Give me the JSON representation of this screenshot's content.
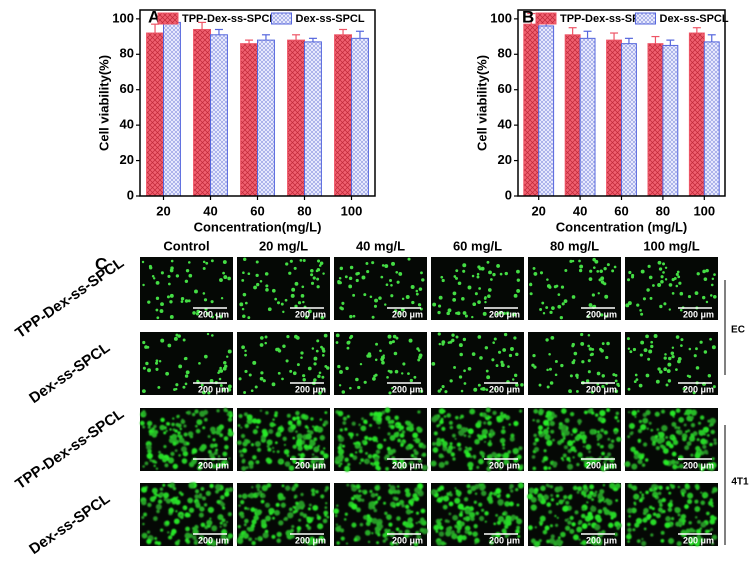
{
  "chart_data": [
    {
      "type": "bar",
      "panel": "A",
      "ylabel": "Cell viability(%)",
      "xlabel": "Concentration(mg/L)",
      "categories": [
        "20",
        "40",
        "60",
        "80",
        "100"
      ],
      "series": [
        {
          "name": "TPP-Dex-ss-SPCL",
          "color": "#ee5566",
          "values": [
            92,
            94,
            86,
            88,
            91
          ],
          "errors": [
            5,
            4,
            2,
            3,
            3
          ]
        },
        {
          "name": "Dex-ss-SPCL",
          "color": "#5566dd",
          "values": [
            98,
            91,
            88,
            87,
            89
          ],
          "errors": [
            3,
            3,
            3,
            2,
            4
          ]
        }
      ],
      "ylim": [
        0,
        105
      ],
      "yticks": [
        0,
        20,
        40,
        60,
        80,
        100
      ]
    },
    {
      "type": "bar",
      "panel": "B",
      "ylabel": "Cell viability(%)",
      "xlabel": "Concentration (mg/L)",
      "categories": [
        "20",
        "40",
        "60",
        "80",
        "100"
      ],
      "series": [
        {
          "name": "TPP-Dex-ss-SPCL",
          "color": "#ee5566",
          "values": [
            97,
            91,
            88,
            86,
            92
          ],
          "errors": [
            6,
            4,
            4,
            4,
            3
          ]
        },
        {
          "name": "Dex-ss-SPCL",
          "color": "#5566dd",
          "values": [
            96,
            89,
            86,
            85,
            87
          ],
          "errors": [
            4,
            4,
            3,
            3,
            4
          ]
        }
      ],
      "ylim": [
        0,
        105
      ],
      "yticks": [
        0,
        20,
        40,
        60,
        80,
        100
      ]
    }
  ],
  "panel_c": {
    "label": "C",
    "columns": [
      "Control",
      "20 mg/L",
      "40 mg/L",
      "60 mg/L",
      "80 mg/L",
      "100 mg/L"
    ],
    "rows": [
      "TPP-Dex-ss-SPCL",
      "Dex-ss-SPCL",
      "TPP-Dex-ss-SPCL",
      "Dex-ss-SPCL"
    ],
    "groups": [
      "EC",
      "4T1"
    ],
    "scale_bar": "200 μm"
  }
}
